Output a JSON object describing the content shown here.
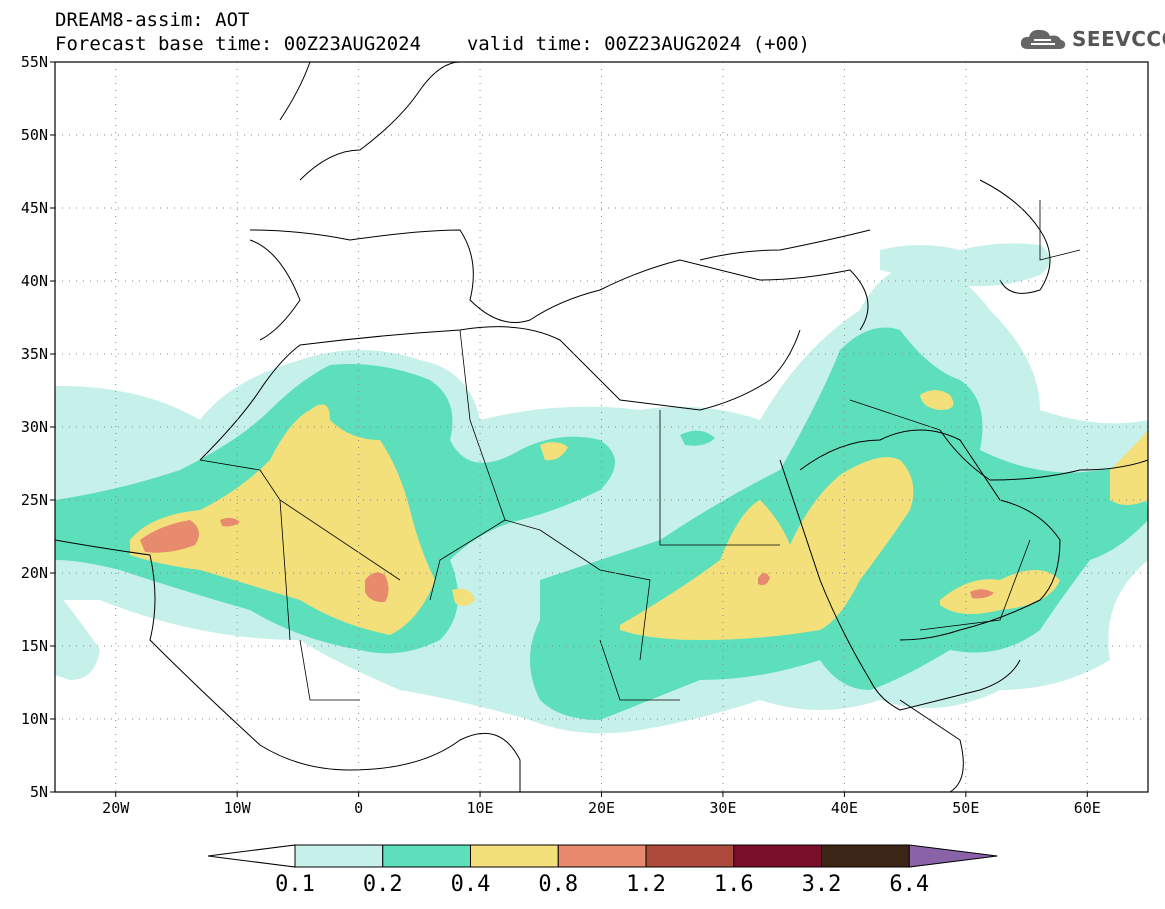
{
  "header": {
    "title": "DREAM8-assim: AOT",
    "base_label": "Forecast base time: 00Z23AUG2024",
    "valid_label": "valid time: 00Z23AUG2024 (+00)"
  },
  "logo": {
    "text": "SEEVCCC",
    "icon": "cloud-icon"
  },
  "map": {
    "projection": "lat-lon",
    "lon_range": [
      -25,
      65
    ],
    "lat_range": [
      5,
      55
    ],
    "lat_ticks": [
      "55N",
      "50N",
      "45N",
      "40N",
      "35N",
      "30N",
      "25N",
      "20N",
      "15N",
      "10N",
      "5N"
    ],
    "lon_ticks": [
      "20W",
      "10W",
      "0",
      "10E",
      "20E",
      "30E",
      "40E",
      "50E",
      "60E"
    ],
    "gridlines": "dotted",
    "field": "Aerosol optical thickness (dust)"
  },
  "colorbar": {
    "labels": [
      "0.1",
      "0.2",
      "0.4",
      "0.8",
      "1.2",
      "1.6",
      "3.2",
      "6.4"
    ],
    "colors": [
      "#c6f0ea",
      "#5ddfbb",
      "#f3e07a",
      "#e88a6e",
      "#ad4a3c",
      "#7a0f2a",
      "#3b2516"
    ],
    "under_color": "#ffffff",
    "over_color": "#8a62a8"
  }
}
